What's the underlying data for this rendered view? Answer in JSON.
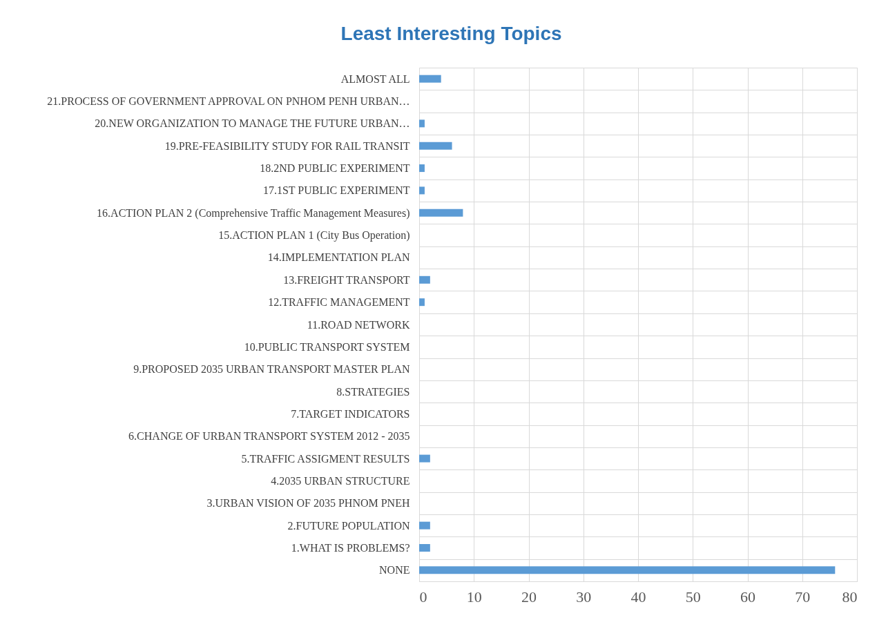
{
  "chart_data": {
    "type": "bar",
    "orientation": "horizontal",
    "title": "Least Interesting Topics",
    "categories": [
      "ALMOST ALL",
      "21.PROCESS OF GOVERNMENT APPROVAL ON PNHOM PENH URBAN…",
      "20.NEW ORGANIZATION TO MANAGE THE FUTURE URBAN…",
      "19.PRE-FEASIBILITY STUDY FOR RAIL TRANSIT",
      "18.2ND PUBLIC EXPERIMENT",
      "17.1ST PUBLIC EXPERIMENT",
      "16.ACTION PLAN 2 (Comprehensive Traffic Management Measures)",
      "15.ACTION PLAN 1 (City Bus Operation)",
      "14.IMPLEMENTATION PLAN",
      "13.FREIGHT TRANSPORT",
      "12.TRAFFIC MANAGEMENT",
      "11.ROAD NETWORK",
      "10.PUBLIC TRANSPORT SYSTEM",
      "9.PROPOSED 2035 URBAN TRANSPORT MASTER PLAN",
      "8.STRATEGIES",
      "7.TARGET INDICATORS",
      "6.CHANGE OF URBAN TRANSPORT SYSTEM 2012 - 2035",
      "5.TRAFFIC ASSIGMENT RESULTS",
      "4.2035 URBAN STRUCTURE",
      "3.URBAN VISION OF 2035 PHNOM PNEH",
      "2.FUTURE POPULATION",
      "1.WHAT IS PROBLEMS?",
      "NONE"
    ],
    "values": [
      4,
      0,
      1,
      6,
      1,
      1,
      8,
      0,
      0,
      2,
      1,
      0,
      0,
      0,
      0,
      0,
      0,
      2,
      0,
      0,
      2,
      2,
      76
    ],
    "color": "#5b9bd5",
    "xlim": [
      0,
      80
    ],
    "xticks": [
      0,
      10,
      20,
      30,
      40,
      50,
      60,
      70,
      80
    ],
    "grid": true
  }
}
